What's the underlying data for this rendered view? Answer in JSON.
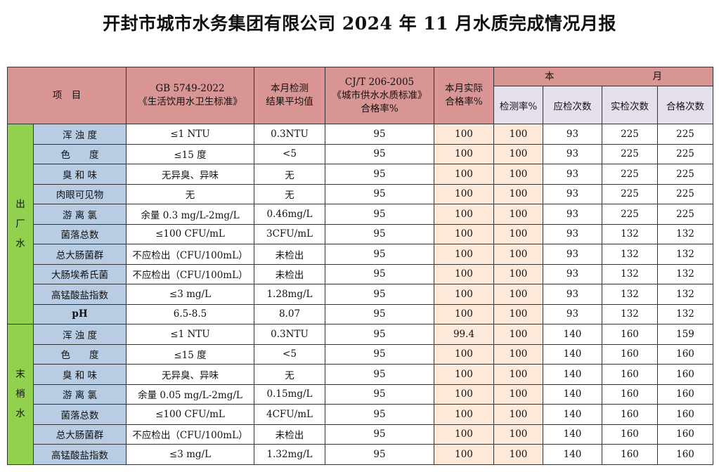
{
  "title": "开封市城市水务集团有限公司 2024 年 11 月水质完成情况月报",
  "header": {
    "item": "项　目",
    "std_gb_line1": "GB 5749-2022",
    "std_gb_line2": "《生活饮用水卫生标准》",
    "avg_line1": "本月检测",
    "avg_line2": "结果平均值",
    "cj_line1": "CJ/T 206-2005",
    "cj_line2": "《城市供水水质标准》",
    "cj_line3": "合格率%",
    "actual_line1": "本月实际",
    "actual_line2": "合格率%",
    "month_a": "本",
    "month_b": "月",
    "sub": [
      "检测率%",
      "应检次数",
      "实检次数",
      "合格次数"
    ]
  },
  "groups": [
    {
      "label": [
        "出",
        "厂",
        "水"
      ],
      "rows": [
        {
          "item": "浑 浊 度",
          "std": "≤1 NTU",
          "avg": "0.3NTU",
          "cj": "95",
          "actual": "100",
          "rate": "100",
          "should": "93",
          "done": "225",
          "pass": "225"
        },
        {
          "item": "色　　度",
          "std": "≤15 度",
          "avg": "<5",
          "cj": "95",
          "actual": "100",
          "rate": "100",
          "should": "93",
          "done": "225",
          "pass": "225"
        },
        {
          "item": "臭 和 味",
          "std": "无异臭、异味",
          "avg": "无",
          "cj": "95",
          "actual": "100",
          "rate": "100",
          "should": "93",
          "done": "225",
          "pass": "225"
        },
        {
          "item": "肉眼可见物",
          "std": "无",
          "avg": "无",
          "cj": "95",
          "actual": "100",
          "rate": "100",
          "should": "93",
          "done": "225",
          "pass": "225"
        },
        {
          "item": "游 离 氯",
          "std": "余量 0.3 mg/L-2mg/L",
          "avg": "0.46mg/L",
          "cj": "95",
          "actual": "100",
          "rate": "100",
          "should": "93",
          "done": "225",
          "pass": "225"
        },
        {
          "item": "菌落总数",
          "std": "≤100 CFU/mL",
          "avg": "3CFU/mL",
          "cj": "95",
          "actual": "100",
          "rate": "100",
          "should": "93",
          "done": "132",
          "pass": "132"
        },
        {
          "item": "总大肠菌群",
          "std": "不应检出（CFU/100mL）",
          "avg": "未检出",
          "cj": "95",
          "actual": "100",
          "rate": "100",
          "should": "93",
          "done": "132",
          "pass": "132"
        },
        {
          "item": "大肠埃希氏菌",
          "std": "不应检出（CFU/100mL）",
          "avg": "未检出",
          "cj": "95",
          "actual": "100",
          "rate": "100",
          "should": "93",
          "done": "132",
          "pass": "132"
        },
        {
          "item": "高锰酸盐指数",
          "std": "≤3 mg/L",
          "avg": "1.28mg/L",
          "cj": "95",
          "actual": "100",
          "rate": "100",
          "should": "93",
          "done": "132",
          "pass": "132"
        },
        {
          "item": "pH",
          "std": "6.5-8.5",
          "avg": "8.07",
          "cj": "95",
          "actual": "100",
          "rate": "100",
          "should": "93",
          "done": "132",
          "pass": "132"
        }
      ]
    },
    {
      "label": [
        "末",
        "梢",
        "水"
      ],
      "rows": [
        {
          "item": "浑 浊 度",
          "std": "≤1 NTU",
          "avg": "0.3NTU",
          "cj": "95",
          "actual": "99.4",
          "rate": "100",
          "should": "140",
          "done": "160",
          "pass": "159"
        },
        {
          "item": "色　　度",
          "std": "≤15 度",
          "avg": "<5",
          "cj": "95",
          "actual": "100",
          "rate": "100",
          "should": "140",
          "done": "160",
          "pass": "160"
        },
        {
          "item": "臭 和 味",
          "std": "无异臭、异味",
          "avg": "无",
          "cj": "95",
          "actual": "100",
          "rate": "100",
          "should": "140",
          "done": "160",
          "pass": "160"
        },
        {
          "item": "游 离 氯",
          "std": "余量 0.05 mg/L-2mg/L",
          "avg": "0.15mg/L",
          "cj": "95",
          "actual": "100",
          "rate": "100",
          "should": "140",
          "done": "160",
          "pass": "160"
        },
        {
          "item": "菌落总数",
          "std": "≤100 CFU/mL",
          "avg": "4CFU/mL",
          "cj": "95",
          "actual": "100",
          "rate": "100",
          "should": "140",
          "done": "160",
          "pass": "160"
        },
        {
          "item": "总大肠菌群",
          "std": "不应检出（CFU/100mL）",
          "avg": "未检出",
          "cj": "95",
          "actual": "100",
          "rate": "100",
          "should": "140",
          "done": "160",
          "pass": "160"
        },
        {
          "item": "高锰酸盐指数",
          "std": "≤3 mg/L",
          "avg": "1.32mg/L",
          "cj": "95",
          "actual": "100",
          "rate": "100",
          "should": "140",
          "done": "160",
          "pass": "160"
        }
      ]
    }
  ]
}
